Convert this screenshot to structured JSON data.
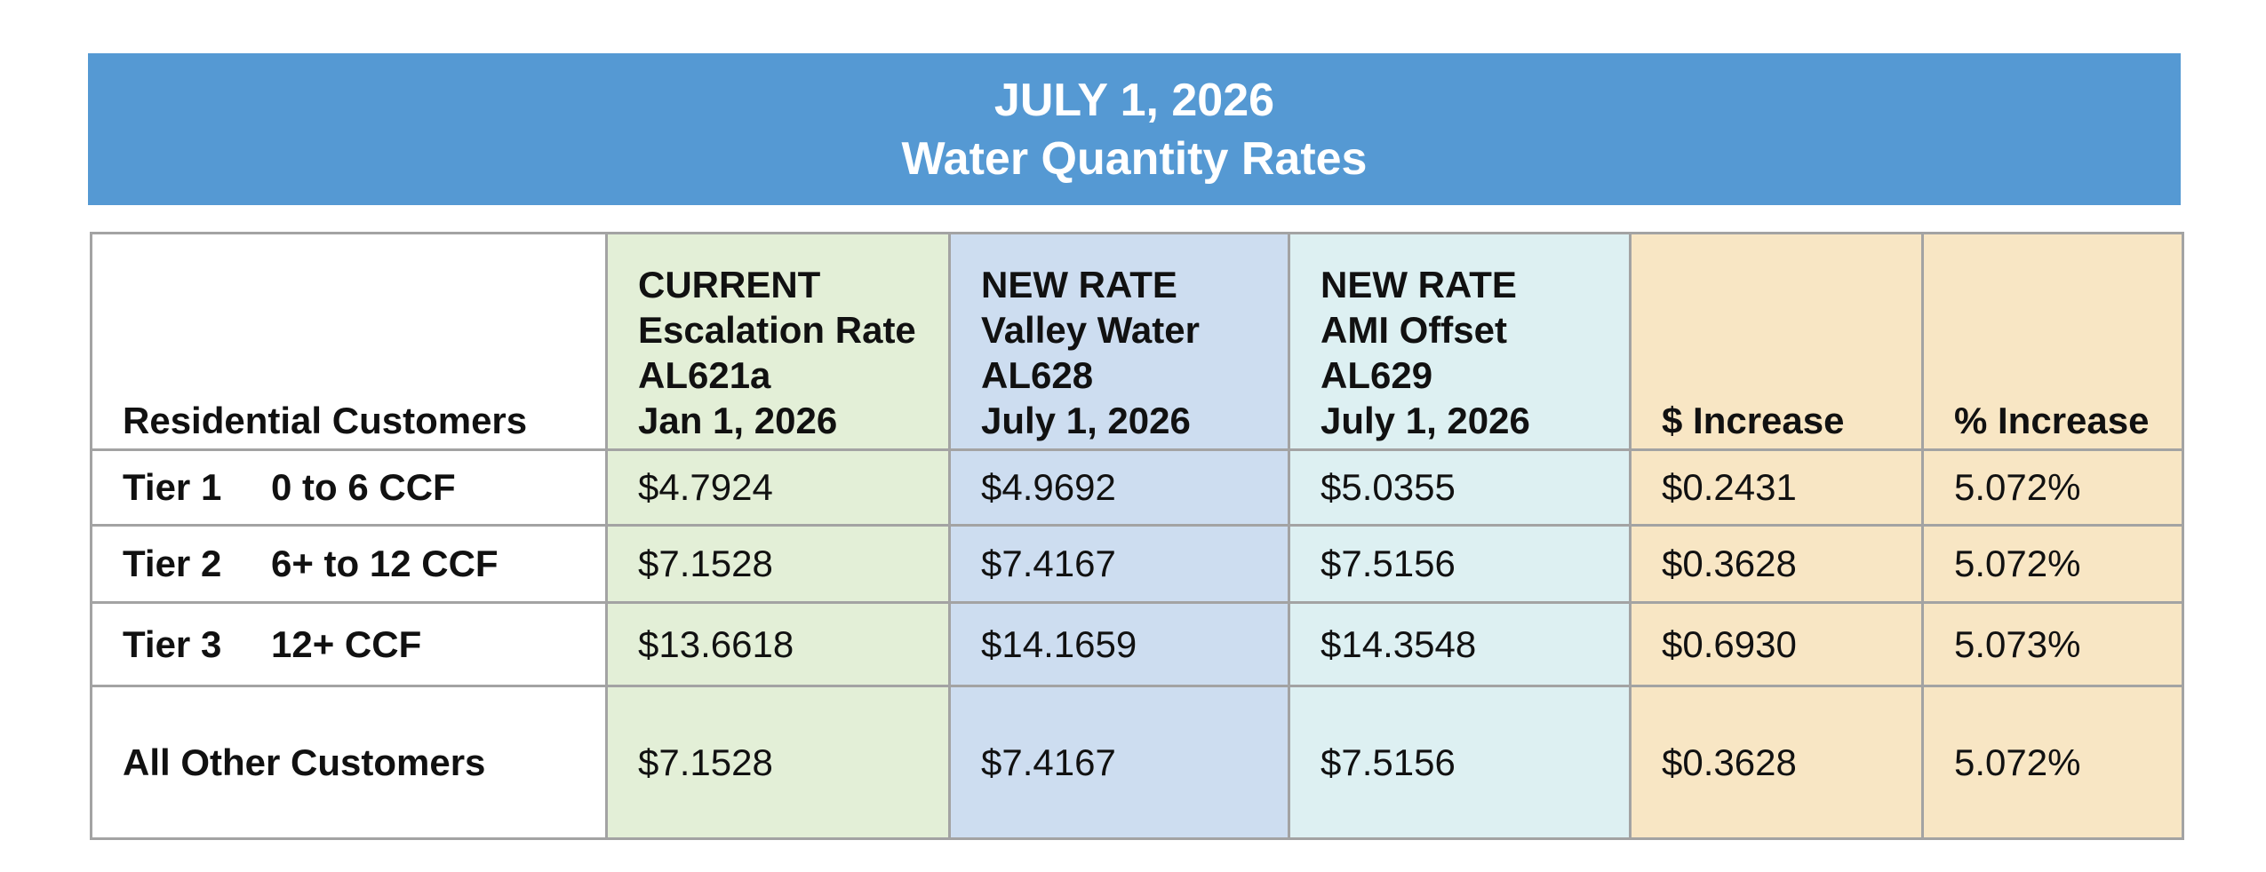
{
  "banner": {
    "line1": "JULY 1, 2026",
    "line2": "Water Quantity Rates"
  },
  "table": {
    "headers": {
      "label": "Residential Customers",
      "current": [
        "CURRENT",
        "Escalation Rate",
        "AL621a",
        "Jan 1, 2026"
      ],
      "valley_water": [
        "NEW RATE",
        "Valley Water",
        "AL628",
        "July 1, 2026"
      ],
      "ami_offset": [
        "NEW RATE",
        "AMI Offset",
        "AL629",
        "July 1, 2026"
      ],
      "dollar_increase": "$ Increase",
      "percent_increase": "% Increase"
    },
    "rows": [
      {
        "tier": "Tier 1",
        "range": "0 to 6 CCF",
        "current": "$4.7924",
        "valley_water": "$4.9692",
        "ami_offset": "$5.0355",
        "dollar_increase": "$0.2431",
        "percent_increase": "5.072%"
      },
      {
        "tier": "Tier 2",
        "range": "6+ to 12 CCF",
        "current": "$7.1528",
        "valley_water": "$7.4167",
        "ami_offset": "$7.5156",
        "dollar_increase": "$0.3628",
        "percent_increase": "5.072%"
      },
      {
        "tier": "Tier 3",
        "range": "12+ CCF",
        "current": "$13.6618",
        "valley_water": "$14.1659",
        "ami_offset": "$14.3548",
        "dollar_increase": "$0.6930",
        "percent_increase": "5.073%"
      }
    ],
    "other": {
      "label": "All Other Customers",
      "current": "$7.1528",
      "valley_water": "$7.4167",
      "ami_offset": "$7.5156",
      "dollar_increase": "$0.3628",
      "percent_increase": "5.072%"
    }
  },
  "colors": {
    "banner": "#5599d3",
    "current_column": "#e3efd7",
    "valley_water_column": "#cdddf0",
    "ami_offset_column": "#ddf0f2",
    "increase_columns": "#f8e6c4",
    "grid": "#a3a3a3"
  }
}
